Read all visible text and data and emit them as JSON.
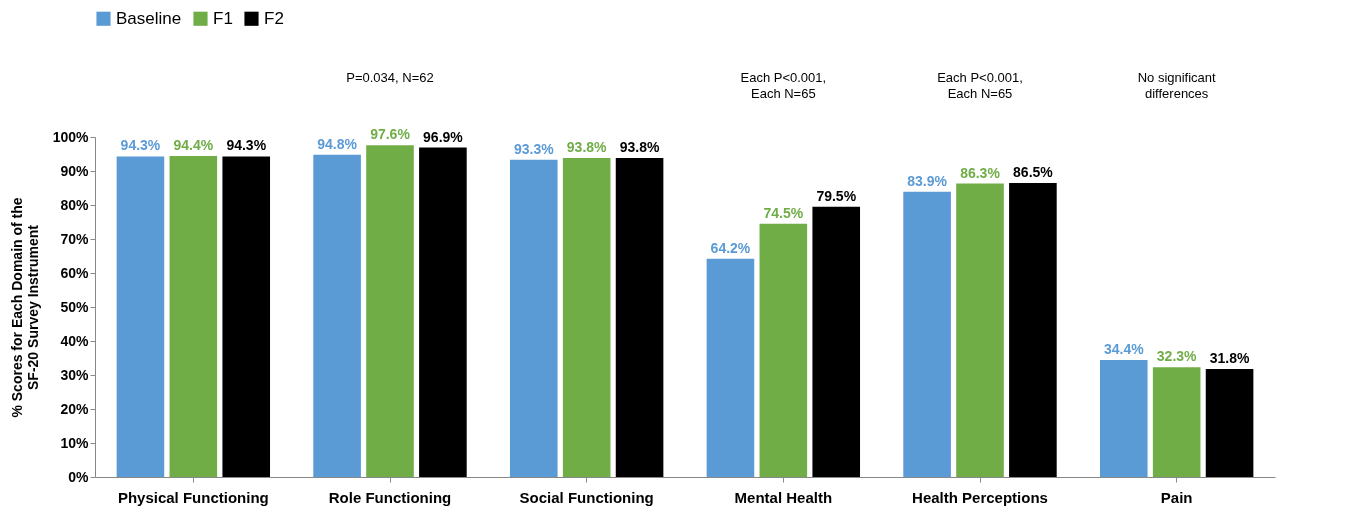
{
  "chart_data": {
    "type": "bar",
    "ylabel": "% Scores for Each Domain of the\nSF-20 Survey Instrument",
    "categories": [
      "Physical Functioning",
      "Role Functioning",
      "Social Functioning",
      "Mental Health",
      "Health Perceptions",
      "Pain"
    ],
    "series": [
      {
        "name": "Baseline",
        "color": "#5b9bd5",
        "values": [
          94.3,
          94.8,
          93.3,
          64.2,
          83.9,
          34.4
        ],
        "value_labels": [
          "94.3%",
          "94.8%",
          "93.3%",
          "64.2%",
          "83.9%",
          "34.4%"
        ]
      },
      {
        "name": "F1",
        "color": "#70ad47",
        "values": [
          94.4,
          97.6,
          93.8,
          74.5,
          86.3,
          32.3
        ],
        "value_labels": [
          "94.4%",
          "97.6%",
          "93.8%",
          "74.5%",
          "86.3%",
          "32.3%"
        ]
      },
      {
        "name": "F2",
        "color": "#000000",
        "values": [
          94.3,
          96.9,
          93.8,
          79.5,
          86.5,
          31.8
        ],
        "value_labels": [
          "94.3%",
          "96.9%",
          "93.8%",
          "79.5%",
          "86.5%",
          "31.8%"
        ]
      }
    ],
    "ylim": [
      0,
      100
    ],
    "yticks": [
      {
        "value": 0,
        "label": "0%"
      },
      {
        "value": 10,
        "label": "10%"
      },
      {
        "value": 20,
        "label": "20%"
      },
      {
        "value": 30,
        "label": "30%"
      },
      {
        "value": 40,
        "label": "40%"
      },
      {
        "value": 50,
        "label": "50%"
      },
      {
        "value": 60,
        "label": "60%"
      },
      {
        "value": 70,
        "label": "70%"
      },
      {
        "value": 80,
        "label": "80%"
      },
      {
        "value": 90,
        "label": "90%"
      },
      {
        "value": 100,
        "label": "100%"
      }
    ],
    "grid": false,
    "legend": "top",
    "annotations": [
      "P=0.034, N=62",
      "Each P<0.001,\nEach N=65",
      "Each P<0.001,\nEach N=65",
      "No significant\ndifferences"
    ]
  }
}
